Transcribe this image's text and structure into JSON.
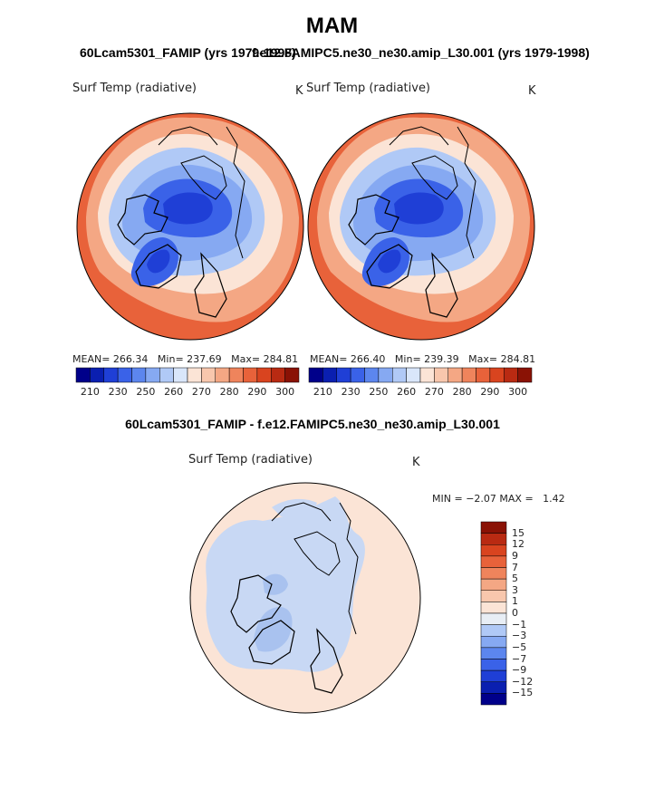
{
  "season": "MAM",
  "top_left": {
    "case_title": "60Lcam5301_FAMIP (yrs 1979-1998)",
    "variable": "Surf Temp (radiative)",
    "units": "K",
    "stats": {
      "mean_label": "MEAN=",
      "mean": "266.34",
      "min_label": "Min=",
      "min": "237.69",
      "max_label": "Max=",
      "max": "284.81"
    }
  },
  "top_right": {
    "case_title": "f.e12.FAMIPC5.ne30_ne30.amip_L30.001 (yrs 1979-1998)",
    "variable": "Surf Temp (radiative)",
    "units": "K",
    "stats": {
      "mean_label": "MEAN=",
      "mean": "266.40",
      "min_label": "Min=",
      "min": "239.39",
      "max_label": "Max=",
      "max": "284.81"
    }
  },
  "colorbar_ticks": [
    "210",
    "230",
    "250",
    "260",
    "270",
    "280",
    "290",
    "300"
  ],
  "colorbar_colors": [
    "#00008a",
    "#0a1fb0",
    "#1f3fd6",
    "#3a62e8",
    "#5c86ee",
    "#86a9f2",
    "#b0c9f6",
    "#d9e6fa",
    "#fbe4d6",
    "#f8c7ad",
    "#f4a784",
    "#ef845c",
    "#e8623a",
    "#d9441f",
    "#b92a12",
    "#8a1205"
  ],
  "difference": {
    "title": "60Lcam5301_FAMIP - f.e12.FAMIPC5.ne30_ne30.amip_L30.001",
    "variable": "Surf Temp (radiative)",
    "units": "K",
    "min_label": "MIN =",
    "min": "−2.07",
    "max_label": "MAX =",
    "max": "1.42",
    "levels": [
      "15",
      "12",
      "9",
      "7",
      "5",
      "3",
      "1",
      "0",
      "−1",
      "−3",
      "−5",
      "−7",
      "−9",
      "−12",
      "−15"
    ],
    "level_colors": [
      "#8a1205",
      "#b92a12",
      "#d9441f",
      "#e8623a",
      "#ef845c",
      "#f4a784",
      "#f8c7ad",
      "#fbe4d6",
      "#e8eef5",
      "#b0c9f6",
      "#86a9f2",
      "#5c86ee",
      "#3a62e8",
      "#1f3fd6",
      "#0a1fb0",
      "#00008a"
    ]
  },
  "map_colors": {
    "warm_edge": "#e8623a",
    "warm_mid": "#f4a784",
    "warm_light": "#fbe4d6",
    "cold_light": "#b0c9f6",
    "cold_mid": "#86a9f2",
    "cold_deep": "#3a62e8",
    "cold_core": "#1f3fd6",
    "diff_warm": "#fbe4d6",
    "diff_cool": "#c8d8f4",
    "diff_cool_deep": "#a9c2ef"
  }
}
